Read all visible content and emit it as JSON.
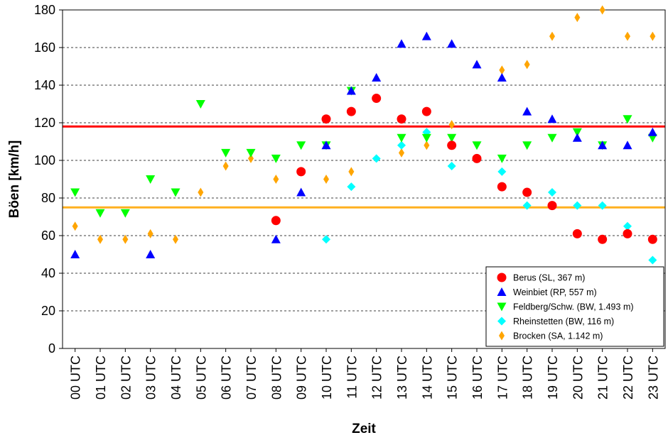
{
  "chart_data": {
    "type": "scatter",
    "xlabel": "Zeit",
    "ylabel": "Böen [km/h]",
    "ylim": [
      0,
      180
    ],
    "yticks": [
      0,
      20,
      40,
      60,
      80,
      100,
      120,
      140,
      160,
      180
    ],
    "grid": "horizontal dashed",
    "legend_position": "bottom-right",
    "categories": [
      "00 UTC",
      "01 UTC",
      "02 UTC",
      "03 UTC",
      "04 UTC",
      "05 UTC",
      "06 UTC",
      "07 UTC",
      "08 UTC",
      "09 UTC",
      "10 UTC",
      "11 UTC",
      "12 UTC",
      "13 UTC",
      "14 UTC",
      "15 UTC",
      "16 UTC",
      "17 UTC",
      "18 UTC",
      "19 UTC",
      "20 UTC",
      "21 UTC",
      "22 UTC",
      "23 UTC"
    ],
    "reference_lines": [
      {
        "y": 118,
        "color": "#ff0000"
      },
      {
        "y": 75,
        "color": "#ffb020"
      }
    ],
    "series": [
      {
        "name": "Berus (SL, 367 m)",
        "marker": "circle",
        "color": "#ff0000",
        "values": [
          null,
          null,
          null,
          null,
          null,
          null,
          null,
          null,
          68,
          94,
          122,
          126,
          133,
          122,
          126,
          108,
          101,
          86,
          83,
          76,
          61,
          58,
          61,
          58
        ]
      },
      {
        "name": "Weinbiet (RP, 557 m)",
        "marker": "triangle-up",
        "color": "#0000ff",
        "values": [
          50,
          null,
          null,
          50,
          null,
          null,
          null,
          null,
          58,
          83,
          108,
          137,
          144,
          162,
          166,
          162,
          151,
          144,
          126,
          122,
          112,
          108,
          108,
          115
        ]
      },
      {
        "name": "Feldberg/Schw. (BW, 1.493 m)",
        "marker": "triangle-down",
        "color": "#00ff00",
        "values": [
          83,
          72,
          72,
          90,
          83,
          130,
          104,
          104,
          101,
          108,
          108,
          137,
          null,
          112,
          112,
          112,
          108,
          101,
          108,
          112,
          115,
          108,
          122,
          112
        ]
      },
      {
        "name": "Rheinstetten (BW, 116 m)",
        "marker": "diamond",
        "color": "#00ffff",
        "values": [
          null,
          null,
          null,
          null,
          null,
          null,
          null,
          null,
          null,
          null,
          58,
          86,
          101,
          108,
          115,
          97,
          null,
          94,
          76,
          83,
          76,
          76,
          65,
          47
        ]
      },
      {
        "name": "Brocken (SA, 1.142 m)",
        "marker": "thin-diamond",
        "color": "#ffa500",
        "values": [
          65,
          58,
          58,
          61,
          58,
          83,
          97,
          101,
          90,
          null,
          90,
          94,
          null,
          104,
          108,
          119,
          null,
          148,
          151,
          166,
          176,
          180,
          166,
          166
        ]
      }
    ]
  }
}
